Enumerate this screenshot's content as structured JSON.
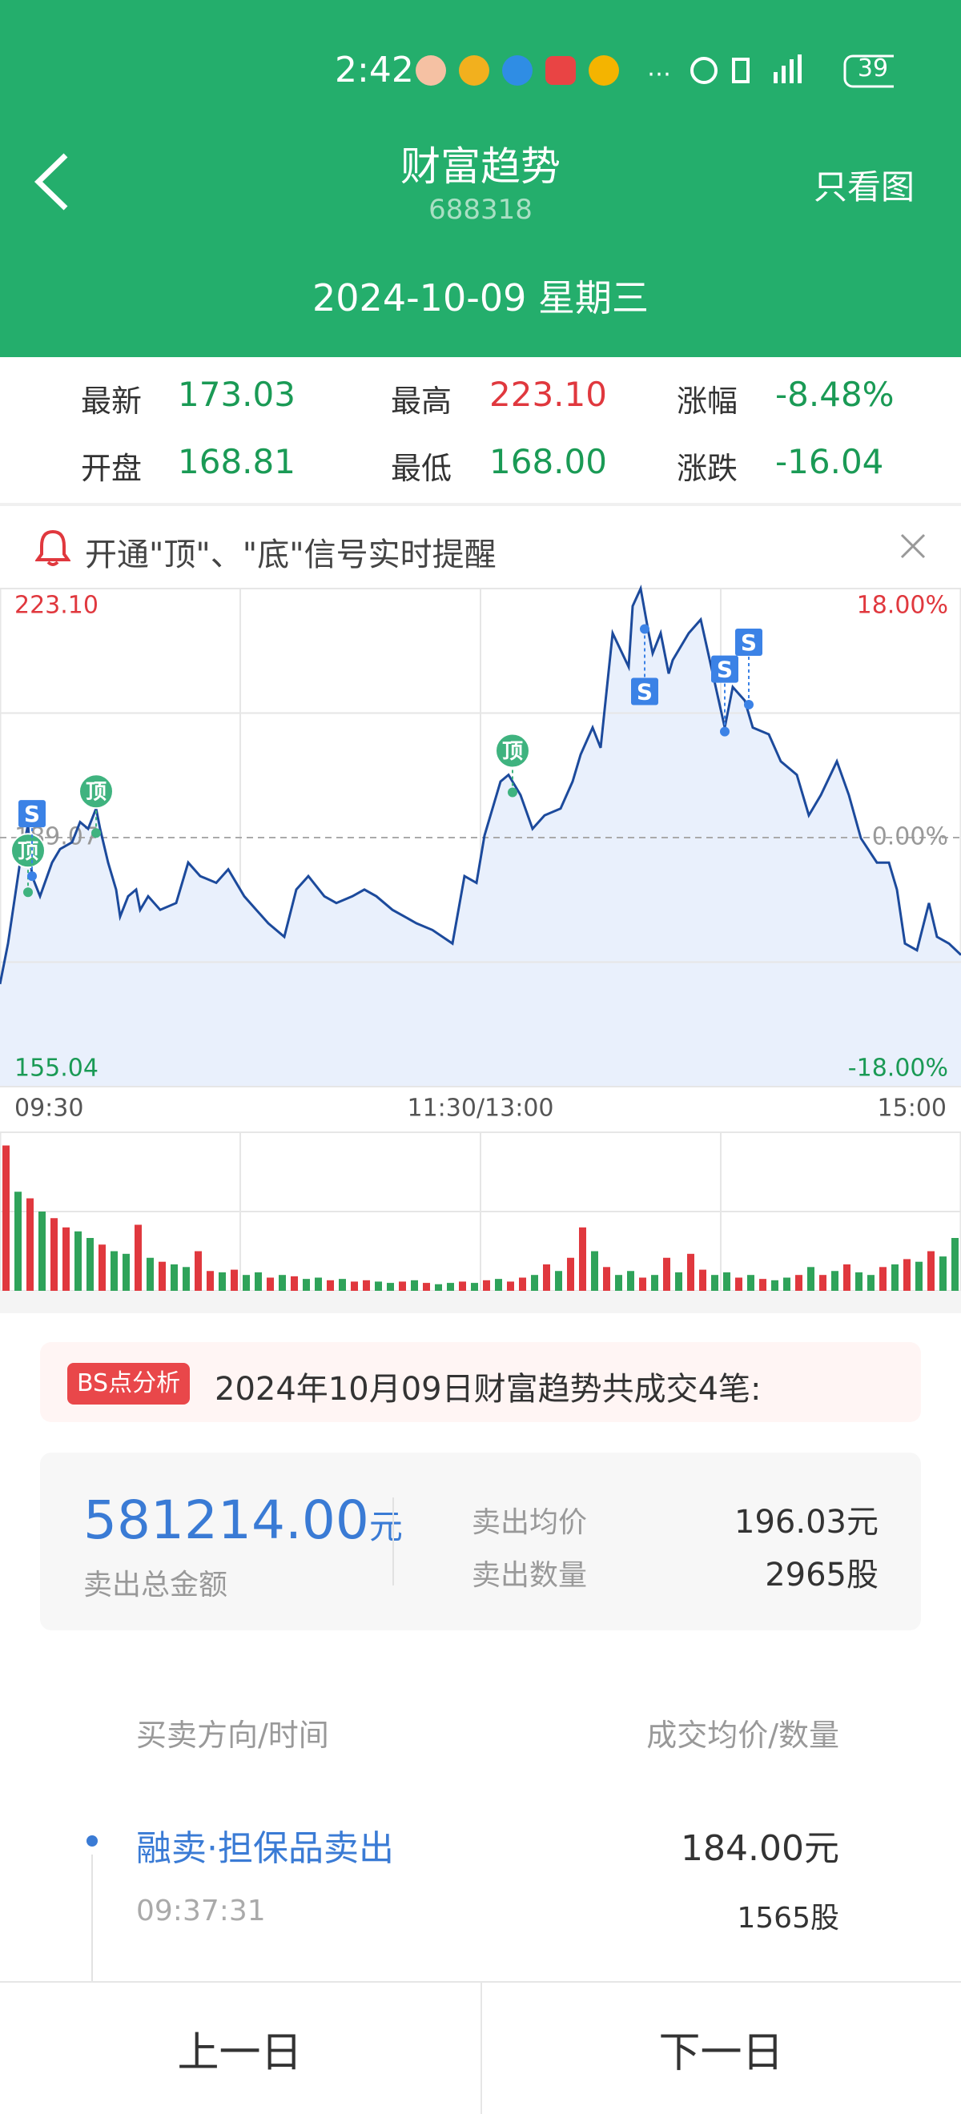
{
  "status_bar": {
    "time": "2:42",
    "battery": "39"
  },
  "header": {
    "title": "财富趋势",
    "code": "688318",
    "action": "只看图",
    "date": "2024-10-09 星期三"
  },
  "quote": [
    {
      "label": "最新",
      "value": "173.03",
      "color": "#1a9a55"
    },
    {
      "label": "最高",
      "value": "223.10",
      "color": "#e0383e"
    },
    {
      "label": "涨幅",
      "value": "-8.48%",
      "color": "#1a9a55"
    },
    {
      "label": "开盘",
      "value": "168.81",
      "color": "#1a9a55"
    },
    {
      "label": "最低",
      "value": "168.00",
      "color": "#1a9a55"
    },
    {
      "label": "涨跌",
      "value": "-16.04",
      "color": "#1a9a55"
    }
  ],
  "alert": {
    "text": "开通\"顶\"、\"底\"信号实时提醒"
  },
  "chart": {
    "type": "line",
    "color": "#1c4a9c",
    "fill": "#e9f0fc",
    "xlim": [
      0,
      240
    ],
    "xticks": [
      {
        "value": 0,
        "label": "09:30"
      },
      {
        "value": 120,
        "label": "11:30/13:00"
      },
      {
        "value": 240,
        "label": "15:00"
      }
    ],
    "ylim": [
      155.04,
      223.1
    ],
    "yticks": [
      {
        "value": 223.1,
        "label": "223.10",
        "color": "#e0383e"
      },
      {
        "value": 206.085,
        "label": null
      },
      {
        "value": 189.07,
        "label": "189.07",
        "color": "#999999"
      },
      {
        "value": 172.055,
        "label": null
      },
      {
        "value": 155.04,
        "label": "155.04",
        "color": "#1a9a55"
      }
    ],
    "y2lim": [
      -18,
      18
    ],
    "y2ticks": [
      {
        "value": 18,
        "label": "18.00%",
        "color": "#e0383e"
      },
      {
        "value": 0,
        "label": "0.00%",
        "color": "#999999"
      },
      {
        "value": -18,
        "label": "-18.00%",
        "color": "#1a9a55"
      }
    ],
    "x": [
      0,
      2,
      3,
      5,
      7,
      8,
      10,
      13,
      15,
      18,
      20,
      22,
      24,
      25,
      27,
      29,
      30,
      32,
      34,
      35,
      37,
      40,
      44,
      47,
      50,
      54,
      57,
      61,
      64,
      67,
      71,
      74,
      77,
      81,
      84,
      88,
      91,
      94,
      98,
      101,
      104,
      108,
      113,
      116,
      119,
      121,
      125,
      127,
      130,
      133,
      136,
      140,
      143,
      145,
      148,
      150,
      153,
      157,
      158,
      160,
      162,
      163,
      165,
      167,
      168,
      172,
      175,
      178,
      181,
      183,
      186,
      188,
      192,
      195,
      199,
      202,
      205,
      209,
      212,
      215,
      219,
      222,
      224,
      226,
      229,
      232,
      234,
      237,
      240
    ],
    "values": [
      169.06,
      174.59,
      178.28,
      185.66,
      190.82,
      183.81,
      181.05,
      185.66,
      187.5,
      188.43,
      191.19,
      190.27,
      193.04,
      190.27,
      185.66,
      181.97,
      178.28,
      181.05,
      181.97,
      179.2,
      181.05,
      179.2,
      180.13,
      185.66,
      183.81,
      182.89,
      184.74,
      181.05,
      179.2,
      177.36,
      175.51,
      181.97,
      183.81,
      181.05,
      180.13,
      181.05,
      181.97,
      181.05,
      179.2,
      178.28,
      177.36,
      176.44,
      174.59,
      183.81,
      182.89,
      189.35,
      196.73,
      197.65,
      194.88,
      190.27,
      192.11,
      193.04,
      196.73,
      200.41,
      204.1,
      201.34,
      217.01,
      212.4,
      220.7,
      223.1,
      217.01,
      214.25,
      217.01,
      211.48,
      213.32,
      217.01,
      218.86,
      211.48,
      204.1,
      209.64,
      207.79,
      204.1,
      203.18,
      199.49,
      197.65,
      192.11,
      194.88,
      199.49,
      194.88,
      188.98,
      185.66,
      185.66,
      181.97,
      174.59,
      173.67,
      180.13,
      175.51,
      174.59,
      173.03
    ],
    "annotations": [
      {
        "label": "顶",
        "x": 7,
        "y": 181.6,
        "side": "above",
        "color": "#3fb37f"
      },
      {
        "label": "S",
        "x": 8,
        "y": 183.81,
        "side": "above",
        "color": "#3b82e6"
      },
      {
        "label": "顶",
        "x": 24,
        "y": 189.7,
        "side": "above",
        "color": "#3fb37f"
      },
      {
        "label": "顶",
        "x": 128,
        "y": 195.25,
        "side": "above",
        "color": "#3fb37f"
      },
      {
        "label": "S",
        "x": 161,
        "y": 217.57,
        "side": "below",
        "color": "#3b82e6"
      },
      {
        "label": "S",
        "x": 181,
        "y": 203.55,
        "side": "above",
        "color": "#3b82e6"
      },
      {
        "label": "S",
        "x": 187,
        "y": 207.24,
        "side": "above",
        "color": "#3b82e6"
      }
    ],
    "volume": {
      "ylim": [
        0,
        120
      ],
      "up_color": "#e0383e",
      "down_color": "#2fa35a",
      "values": [
        110,
        75,
        70,
        60,
        55,
        48,
        45,
        40,
        35,
        30,
        28,
        50,
        25,
        22,
        20,
        18,
        30,
        15,
        14,
        16,
        12,
        14,
        10,
        12,
        11,
        9,
        10,
        8,
        9,
        7,
        8,
        7,
        6,
        7,
        8,
        6,
        5,
        6,
        7,
        6,
        8,
        9,
        7,
        10,
        12,
        20,
        15,
        25,
        48,
        30,
        18,
        12,
        15,
        10,
        12,
        25,
        14,
        28,
        16,
        12,
        14,
        10,
        12,
        9,
        8,
        10,
        12,
        18,
        12,
        15,
        20,
        14,
        12,
        18,
        20,
        24,
        22,
        30,
        26,
        40
      ],
      "up": [
        true,
        false,
        true,
        false,
        true,
        true,
        false,
        false,
        true,
        false,
        false,
        true,
        false,
        true,
        false,
        false,
        true,
        true,
        false,
        true,
        false,
        false,
        true,
        false,
        true,
        false,
        false,
        true,
        false,
        true,
        true,
        false,
        false,
        true,
        false,
        true,
        false,
        false,
        true,
        false,
        true,
        false,
        true,
        true,
        false,
        true,
        false,
        true,
        true,
        false,
        true,
        false,
        false,
        true,
        false,
        true,
        false,
        true,
        true,
        false,
        false,
        true,
        false,
        true,
        false,
        false,
        true,
        false,
        true,
        false,
        true,
        false,
        false,
        true,
        false,
        true,
        false,
        true,
        false,
        false
      ]
    }
  },
  "analysis": {
    "tag": "BS点分析",
    "text": "2024年10月09日财富趋势共成交4笔:"
  },
  "summary": {
    "amount": "581214.00",
    "amount_unit": "元",
    "amount_label": "卖出总金额",
    "rows": [
      {
        "label": "卖出均价",
        "value": "196.03元"
      },
      {
        "label": "卖出数量",
        "value": "2965股"
      }
    ]
  },
  "table": {
    "headers": [
      "买卖方向/时间",
      "成交均价/数量"
    ],
    "rows": [
      {
        "direction": "融卖·担保品卖出",
        "time": "09:37:31",
        "price": "184.00元",
        "quantity": "1565股"
      }
    ]
  },
  "footer": {
    "prev": "上一日",
    "next": "下一日"
  }
}
